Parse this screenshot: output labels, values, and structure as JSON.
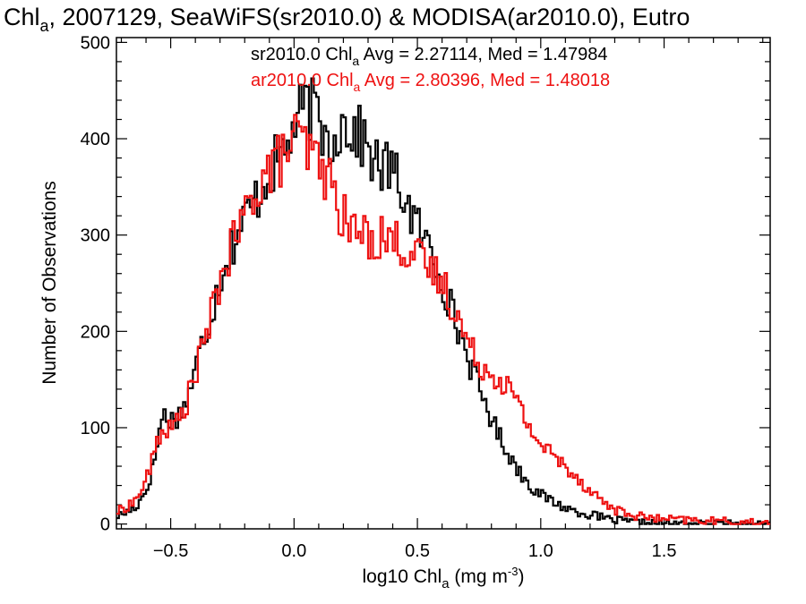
{
  "chart_data": {
    "type": "line",
    "title": "Chla, 2007129, SeaWiFS(sr2010.0) & MODISA(ar2010.0), Eutro",
    "title_parts": {
      "lead": "Chl",
      "lead_sub": "a",
      "rest": ", 2007129, SeaWiFS(sr2010.0) & MODISA(ar2010.0), Eutro"
    },
    "xlabel": "log10 Chla (mg m-3)",
    "xlabel_parts": {
      "lead": "log10 Chl",
      "lead_sub": "a",
      "mid": " (mg m",
      "sup": "-3",
      "tail": ")"
    },
    "ylabel": "Number of Observations",
    "xlim": [
      -0.72,
      1.93
    ],
    "ylim": [
      -5,
      505
    ],
    "x_ticks": [
      -0.5,
      0.0,
      0.5,
      1.0,
      1.5
    ],
    "x_tick_labels": [
      "−0.5",
      "0.0",
      "0.5",
      "1.0",
      "1.5"
    ],
    "y_ticks": [
      0,
      100,
      200,
      300,
      400,
      500
    ],
    "y_tick_labels": [
      "0",
      "100",
      "200",
      "300",
      "400",
      "500"
    ],
    "step": "histogram",
    "grid": false,
    "legend_placement": "top-center",
    "series": [
      {
        "name": "sr2010.0",
        "color": "#000000",
        "stats_text": {
          "lead": "sr2010.0 Chl",
          "sub": "a",
          "rest": " Avg = 2.27114, Med = 1.47984"
        },
        "knots": [
          [
            -0.72,
            8
          ],
          [
            -0.68,
            12
          ],
          [
            -0.64,
            18
          ],
          [
            -0.6,
            35
          ],
          [
            -0.57,
            60
          ],
          [
            -0.55,
            92
          ],
          [
            -0.53,
            115
          ],
          [
            -0.5,
            108
          ],
          [
            -0.47,
            112
          ],
          [
            -0.44,
            125
          ],
          [
            -0.41,
            150
          ],
          [
            -0.38,
            182
          ],
          [
            -0.35,
            205
          ],
          [
            -0.32,
            235
          ],
          [
            -0.29,
            265
          ],
          [
            -0.26,
            285
          ],
          [
            -0.23,
            300
          ],
          [
            -0.2,
            318
          ],
          [
            -0.17,
            330
          ],
          [
            -0.14,
            345
          ],
          [
            -0.11,
            360
          ],
          [
            -0.08,
            372
          ],
          [
            -0.05,
            385
          ],
          [
            -0.02,
            398
          ],
          [
            0.0,
            412
          ],
          [
            0.02,
            422
          ],
          [
            0.04,
            430
          ],
          [
            0.06,
            432
          ],
          [
            0.08,
            428
          ],
          [
            0.1,
            418
          ],
          [
            0.12,
            405
          ],
          [
            0.14,
            398
          ],
          [
            0.16,
            402
          ],
          [
            0.18,
            412
          ],
          [
            0.2,
            416
          ],
          [
            0.22,
            414
          ],
          [
            0.24,
            408
          ],
          [
            0.26,
            404
          ],
          [
            0.28,
            398
          ],
          [
            0.3,
            390
          ],
          [
            0.32,
            380
          ],
          [
            0.34,
            370
          ],
          [
            0.36,
            368
          ],
          [
            0.38,
            372
          ],
          [
            0.4,
            365
          ],
          [
            0.42,
            355
          ],
          [
            0.44,
            345
          ],
          [
            0.46,
            332
          ],
          [
            0.48,
            320
          ],
          [
            0.5,
            308
          ],
          [
            0.52,
            298
          ],
          [
            0.54,
            290
          ],
          [
            0.56,
            280
          ],
          [
            0.58,
            268
          ],
          [
            0.6,
            255
          ],
          [
            0.62,
            238
          ],
          [
            0.64,
            222
          ],
          [
            0.66,
            205
          ],
          [
            0.68,
            192
          ],
          [
            0.7,
            178
          ],
          [
            0.72,
            162
          ],
          [
            0.74,
            148
          ],
          [
            0.76,
            135
          ],
          [
            0.78,
            122
          ],
          [
            0.8,
            110
          ],
          [
            0.82,
            98
          ],
          [
            0.84,
            88
          ],
          [
            0.86,
            78
          ],
          [
            0.88,
            68
          ],
          [
            0.9,
            60
          ],
          [
            0.92,
            52
          ],
          [
            0.94,
            46
          ],
          [
            0.96,
            40
          ],
          [
            0.98,
            35
          ],
          [
            1.0,
            30
          ],
          [
            1.03,
            26
          ],
          [
            1.06,
            22
          ],
          [
            1.09,
            18
          ],
          [
            1.12,
            15
          ],
          [
            1.15,
            13
          ],
          [
            1.18,
            11
          ],
          [
            1.21,
            9
          ],
          [
            1.24,
            7
          ],
          [
            1.27,
            5
          ],
          [
            1.3,
            4
          ],
          [
            1.33,
            3
          ],
          [
            1.36,
            2
          ],
          [
            1.4,
            1
          ],
          [
            1.45,
            1
          ],
          [
            1.5,
            0
          ],
          [
            1.6,
            0
          ],
          [
            1.7,
            0
          ],
          [
            1.8,
            0
          ],
          [
            1.93,
            0
          ]
        ]
      },
      {
        "name": "ar2010.0",
        "color": "#ee1111",
        "stats_text": {
          "lead": "ar2010.0 Chl",
          "sub": "a",
          "rest": " Avg = 2.80396, Med = 1.48018"
        },
        "knots": [
          [
            -0.72,
            12
          ],
          [
            -0.68,
            18
          ],
          [
            -0.64,
            25
          ],
          [
            -0.61,
            40
          ],
          [
            -0.58,
            60
          ],
          [
            -0.55,
            90
          ],
          [
            -0.52,
            100
          ],
          [
            -0.5,
            97
          ],
          [
            -0.47,
            108
          ],
          [
            -0.44,
            122
          ],
          [
            -0.41,
            148
          ],
          [
            -0.38,
            175
          ],
          [
            -0.35,
            200
          ],
          [
            -0.32,
            232
          ],
          [
            -0.29,
            262
          ],
          [
            -0.26,
            282
          ],
          [
            -0.23,
            300
          ],
          [
            -0.2,
            318
          ],
          [
            -0.17,
            340
          ],
          [
            -0.14,
            356
          ],
          [
            -0.11,
            365
          ],
          [
            -0.08,
            372
          ],
          [
            -0.05,
            380
          ],
          [
            -0.02,
            392
          ],
          [
            0.0,
            400
          ],
          [
            0.02,
            398
          ],
          [
            0.04,
            392
          ],
          [
            0.06,
            385
          ],
          [
            0.08,
            380
          ],
          [
            0.1,
            375
          ],
          [
            0.12,
            368
          ],
          [
            0.14,
            358
          ],
          [
            0.16,
            345
          ],
          [
            0.18,
            330
          ],
          [
            0.2,
            318
          ],
          [
            0.22,
            310
          ],
          [
            0.24,
            305
          ],
          [
            0.26,
            302
          ],
          [
            0.28,
            300
          ],
          [
            0.3,
            298
          ],
          [
            0.32,
            297
          ],
          [
            0.34,
            297
          ],
          [
            0.36,
            300
          ],
          [
            0.38,
            298
          ],
          [
            0.4,
            295
          ],
          [
            0.42,
            292
          ],
          [
            0.44,
            290
          ],
          [
            0.46,
            286
          ],
          [
            0.48,
            282
          ],
          [
            0.5,
            276
          ],
          [
            0.52,
            270
          ],
          [
            0.54,
            265
          ],
          [
            0.56,
            262
          ],
          [
            0.58,
            258
          ],
          [
            0.6,
            252
          ],
          [
            0.62,
            242
          ],
          [
            0.64,
            230
          ],
          [
            0.66,
            218
          ],
          [
            0.68,
            205
          ],
          [
            0.7,
            190
          ],
          [
            0.72,
            180
          ],
          [
            0.74,
            172
          ],
          [
            0.76,
            166
          ],
          [
            0.78,
            160
          ],
          [
            0.8,
            157
          ],
          [
            0.82,
            154
          ],
          [
            0.84,
            150
          ],
          [
            0.86,
            145
          ],
          [
            0.88,
            138
          ],
          [
            0.9,
            128
          ],
          [
            0.92,
            118
          ],
          [
            0.94,
            108
          ],
          [
            0.96,
            98
          ],
          [
            0.98,
            90
          ],
          [
            1.0,
            83
          ],
          [
            1.03,
            76
          ],
          [
            1.06,
            69
          ],
          [
            1.09,
            62
          ],
          [
            1.12,
            56
          ],
          [
            1.15,
            48
          ],
          [
            1.18,
            40
          ],
          [
            1.21,
            33
          ],
          [
            1.24,
            26
          ],
          [
            1.27,
            20
          ],
          [
            1.3,
            15
          ],
          [
            1.33,
            12
          ],
          [
            1.36,
            10
          ],
          [
            1.4,
            8
          ],
          [
            1.45,
            6
          ],
          [
            1.5,
            5
          ],
          [
            1.6,
            4
          ],
          [
            1.7,
            3
          ],
          [
            1.8,
            2
          ],
          [
            1.93,
            1
          ]
        ]
      }
    ]
  }
}
